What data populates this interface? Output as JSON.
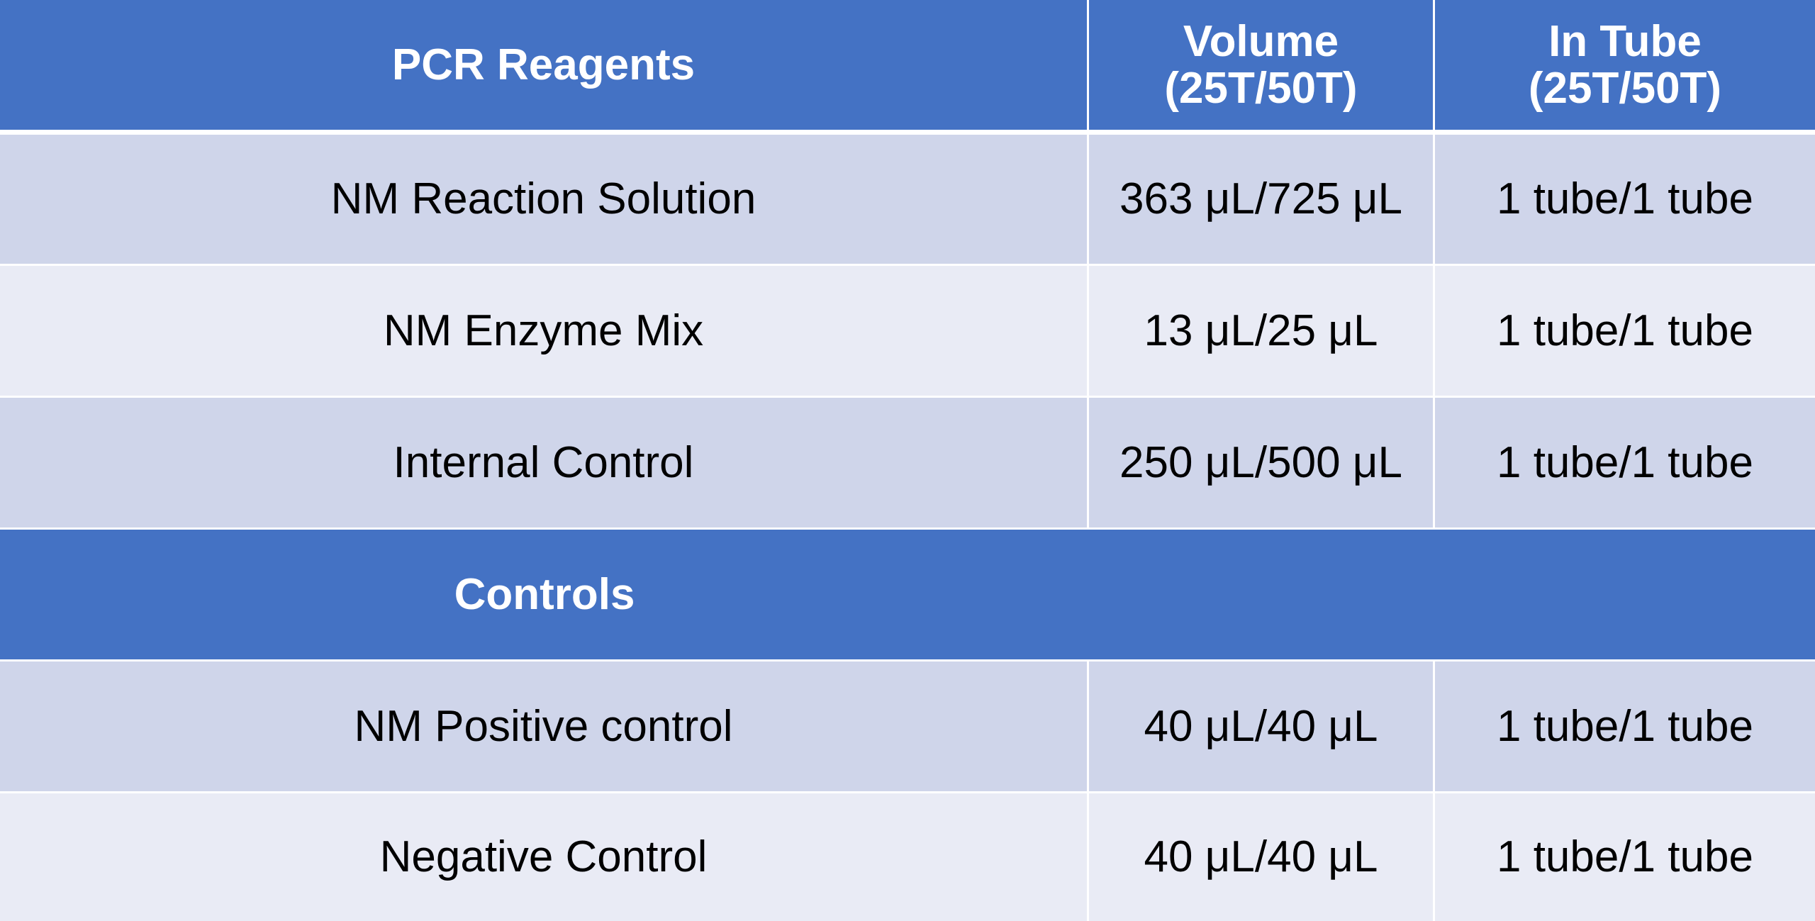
{
  "table": {
    "header": {
      "col1": "PCR Reagents",
      "col2_line1": "Volume",
      "col2_line2": "(25T/50T)",
      "col3_line1": "In Tube",
      "col3_line2": "(25T/50T)"
    },
    "reagents": [
      {
        "name": "NM Reaction Solution",
        "volume": "363 μL/725 μL",
        "in_tube": "1 tube/1 tube"
      },
      {
        "name": "NM Enzyme Mix",
        "volume": "13 μL/25 μL",
        "in_tube": "1 tube/1 tube"
      },
      {
        "name": "Internal Control",
        "volume": "250 μL/500 μL",
        "in_tube": "1 tube/1 tube"
      }
    ],
    "controls_header": "Controls",
    "controls": [
      {
        "name": "NM Positive control",
        "volume": "40 μL/40 μL",
        "in_tube": "1 tube/1 tube"
      },
      {
        "name": "Negative Control",
        "volume": "40 μL/40 μL",
        "in_tube": "1 tube/1 tube"
      }
    ]
  },
  "colors": {
    "header_bg": "#4472c4",
    "row_dark": "#cfd5ea",
    "row_light": "#e9ebf5",
    "header_text": "#ffffff"
  }
}
